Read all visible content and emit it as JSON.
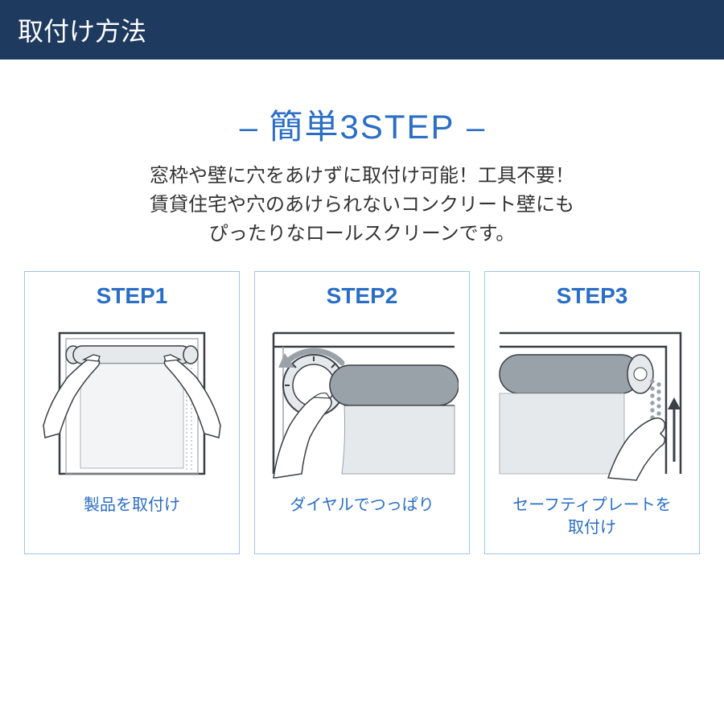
{
  "header": {
    "title": "取付け方法"
  },
  "section": {
    "title": "簡単3STEP",
    "desc_line1": "窓枠や壁に穴をあけずに取付け可能！工具不要！",
    "desc_line2": "賃貸住宅や穴のあけられないコンクリート壁にも",
    "desc_line3": "ぴったりなロールスクリーンです。"
  },
  "steps": [
    {
      "title": "STEP1",
      "caption": "製品を取付け",
      "illustration": "install"
    },
    {
      "title": "STEP2",
      "caption": "ダイヤルでつっぱり",
      "illustration": "dial"
    },
    {
      "title": "STEP3",
      "caption": "セーフティプレートを\n取付け",
      "illustration": "safety"
    }
  ],
  "colors": {
    "header_bg": "#1e3a5f",
    "header_text": "#ffffff",
    "accent": "#2a6ec6",
    "border": "#9ec5e8",
    "body_text": "#333333",
    "ill_gray": "#9aa2a9",
    "ill_dark": "#3a3f44",
    "ill_light": "#e6e9ec"
  }
}
